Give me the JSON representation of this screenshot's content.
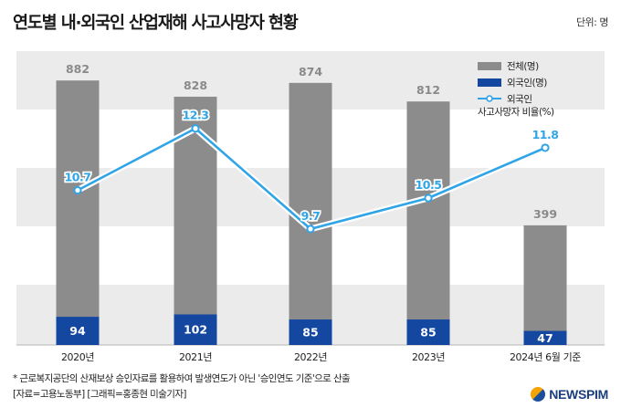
{
  "header": {
    "title": "연도별 내·외국인 산업재해 사고사망자 현황",
    "unit": "단위: 명"
  },
  "chart_data": {
    "type": "bar",
    "categories": [
      "2020년",
      "2021년",
      "2022년",
      "2023년",
      "2024년 6월 기준"
    ],
    "series": [
      {
        "name": "전체(명)",
        "type": "bar",
        "values": [
          882,
          828,
          874,
          812,
          399
        ],
        "color": "#8c8c8c"
      },
      {
        "name": "외국인(명)",
        "type": "bar",
        "values": [
          94,
          102,
          85,
          85,
          47
        ],
        "color": "#1448a0"
      },
      {
        "name": "외국인\n사고사망자 비율(%)",
        "type": "line",
        "values": [
          10.7,
          12.3,
          9.7,
          10.5,
          11.8
        ],
        "color": "#2fa4e7"
      }
    ],
    "ylim_bar": [
      0,
      980
    ],
    "ylim_line": [
      6.7,
      14.3
    ],
    "legend_position": "top-right",
    "grid": "alternating bands"
  },
  "footnote": {
    "line1": "* 근로복지공단의 산재보상 승인자료를 활용하여 발생연도가 아닌 '승인연도 기준'으로 산출",
    "line2": "[자료=고용노동부] [그래픽=홍종현 미술기자]"
  },
  "brand": {
    "name": "NEWSPIM"
  }
}
